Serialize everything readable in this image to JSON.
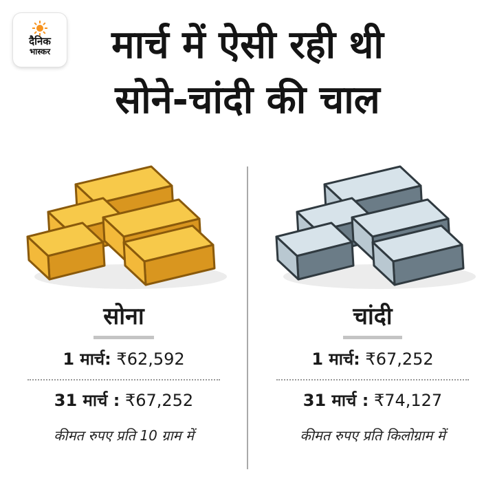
{
  "logo": {
    "line1": "दैनिक",
    "line2": "भास्कर",
    "accent": "#f7931e"
  },
  "title": {
    "line1": "मार्च में ऐसी रही थी",
    "line2": "सोने-चांदी की चाल"
  },
  "gold": {
    "name": "सोना",
    "rows": [
      {
        "label": "1 मार्च:",
        "value": "₹62,592"
      },
      {
        "label": "31 मार्च :",
        "value": "₹67,252"
      }
    ],
    "note": "कीमत रुपए प्रति 10 ग्राम में",
    "colors": {
      "face": "#f7c94a",
      "side": "#d9961f",
      "dark": "#8a5a0c"
    }
  },
  "silver": {
    "name": "चांदी",
    "rows": [
      {
        "label": "1 मार्च:",
        "value": "₹67,252"
      },
      {
        "label": "31 मार्च :",
        "value": "₹74,127"
      }
    ],
    "note": "कीमत रुपए प्रति किलोग्राम में",
    "colors": {
      "face": "#d7e3ea",
      "side": "#6b7c87",
      "dark": "#303a40"
    }
  }
}
